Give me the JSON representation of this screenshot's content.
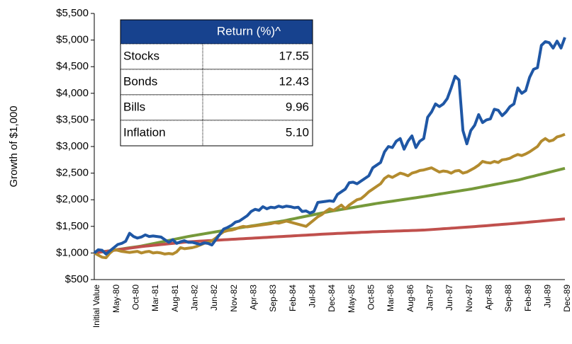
{
  "chart_data": {
    "type": "line",
    "y_label": "Growth of $1,000",
    "categories": [
      "Initial Value",
      null,
      null,
      null,
      null,
      "May-80",
      null,
      null,
      null,
      null,
      "Oct-80",
      null,
      null,
      null,
      null,
      "Mar-81",
      null,
      null,
      null,
      null,
      "Aug-81",
      null,
      null,
      null,
      null,
      "Jan-82",
      null,
      null,
      null,
      null,
      "Jun-82",
      null,
      null,
      null,
      null,
      "Nov-82",
      null,
      null,
      null,
      null,
      "Apr-83",
      null,
      null,
      null,
      null,
      "Sep-83",
      null,
      null,
      null,
      null,
      "Feb-84",
      null,
      null,
      null,
      null,
      "Jul-84",
      null,
      null,
      null,
      null,
      "Dec-84",
      null,
      null,
      null,
      null,
      "May-85",
      null,
      null,
      null,
      null,
      "Oct-85",
      null,
      null,
      null,
      null,
      "Mar-86",
      null,
      null,
      null,
      null,
      "Aug-86",
      null,
      null,
      null,
      null,
      "Jan-87",
      null,
      null,
      null,
      null,
      "Jun-87",
      null,
      null,
      null,
      null,
      "Nov-87",
      null,
      null,
      null,
      null,
      "Apr-88",
      null,
      null,
      null,
      null,
      "Sep-88",
      null,
      null,
      null,
      null,
      "Feb-89",
      null,
      null,
      null,
      null,
      "Jul-89",
      null,
      null,
      null,
      null,
      "Dec-89"
    ],
    "series": [
      {
        "name": "Stocks",
        "color": "#1f57a5",
        "values": [
          1000,
          1060,
          1050,
          980,
          1040,
          1100,
          1160,
          1180,
          1220,
          1370,
          1310,
          1280,
          1300,
          1340,
          1310,
          1320,
          1310,
          1300,
          1250,
          1200,
          1250,
          1180,
          1210,
          1230,
          1200,
          1200,
          1180,
          1160,
          1190,
          1180,
          1150,
          1250,
          1350,
          1450,
          1480,
          1520,
          1580,
          1600,
          1650,
          1700,
          1780,
          1820,
          1800,
          1870,
          1830,
          1860,
          1850,
          1880,
          1860,
          1880,
          1870,
          1850,
          1860,
          1780,
          1790,
          1750,
          1780,
          1950,
          1960,
          1970,
          1980,
          1970,
          2100,
          2150,
          2200,
          2320,
          2330,
          2300,
          2350,
          2400,
          2450,
          2600,
          2650,
          2700,
          2900,
          3000,
          2980,
          3100,
          3150,
          2950,
          3100,
          3200,
          2980,
          3100,
          3150,
          3550,
          3650,
          3800,
          3750,
          3800,
          3900,
          4100,
          4320,
          4250,
          3300,
          3050,
          3300,
          3400,
          3600,
          3450,
          3500,
          3520,
          3700,
          3680,
          3580,
          3650,
          3750,
          3800,
          4100,
          4000,
          4050,
          4300,
          4450,
          4480,
          4900,
          4970,
          4950,
          4850,
          4980,
          4850,
          5050
        ]
      },
      {
        "name": "Bonds",
        "color": "#b38b2e",
        "values": [
          1000,
          960,
          920,
          910,
          1000,
          1060,
          1050,
          1030,
          1020,
          1010,
          1020,
          1030,
          1000,
          1020,
          1030,
          1000,
          1010,
          1000,
          980,
          990,
          980,
          1020,
          1100,
          1080,
          1090,
          1100,
          1120,
          1150,
          1180,
          1200,
          1230,
          1280,
          1350,
          1400,
          1420,
          1430,
          1450,
          1480,
          1500,
          1490,
          1500,
          1510,
          1520,
          1530,
          1540,
          1550,
          1570,
          1560,
          1580,
          1600,
          1580,
          1560,
          1540,
          1520,
          1500,
          1560,
          1620,
          1680,
          1720,
          1780,
          1830,
          1800,
          1850,
          1900,
          1830,
          1900,
          1950,
          2000,
          2020,
          2080,
          2150,
          2200,
          2250,
          2300,
          2400,
          2450,
          2420,
          2460,
          2500,
          2480,
          2450,
          2500,
          2520,
          2550,
          2560,
          2580,
          2600,
          2560,
          2520,
          2540,
          2530,
          2500,
          2540,
          2550,
          2500,
          2520,
          2560,
          2600,
          2650,
          2720,
          2700,
          2690,
          2720,
          2700,
          2750,
          2760,
          2780,
          2820,
          2850,
          2830,
          2860,
          2900,
          2950,
          3000,
          3100,
          3150,
          3100,
          3120,
          3180,
          3200,
          3230
        ]
      },
      {
        "name": "Bills",
        "color": "#76993a",
        "values": [
          1000,
          1011,
          1022,
          1033,
          1043,
          1054,
          1065,
          1076,
          1087,
          1098,
          1108,
          1119,
          1130,
          1145,
          1160,
          1175,
          1190,
          1205,
          1220,
          1235,
          1250,
          1265,
          1280,
          1295,
          1310,
          1323,
          1335,
          1348,
          1360,
          1373,
          1385,
          1398,
          1410,
          1423,
          1435,
          1448,
          1460,
          1472,
          1483,
          1495,
          1507,
          1518,
          1530,
          1542,
          1553,
          1565,
          1577,
          1588,
          1600,
          1615,
          1630,
          1645,
          1660,
          1675,
          1690,
          1705,
          1720,
          1735,
          1750,
          1765,
          1780,
          1793,
          1805,
          1818,
          1830,
          1843,
          1855,
          1868,
          1880,
          1893,
          1905,
          1918,
          1930,
          1941,
          1952,
          1963,
          1973,
          1984,
          1995,
          2006,
          2017,
          2028,
          2038,
          2049,
          2060,
          2072,
          2083,
          2095,
          2107,
          2118,
          2130,
          2142,
          2153,
          2165,
          2177,
          2188,
          2200,
          2214,
          2228,
          2243,
          2257,
          2271,
          2285,
          2299,
          2313,
          2328,
          2342,
          2356,
          2370,
          2388,
          2407,
          2425,
          2443,
          2462,
          2480,
          2498,
          2517,
          2535,
          2553,
          2572,
          2590
        ]
      },
      {
        "name": "Inflation",
        "color": "#c0504d",
        "values": [
          1000,
          1010,
          1020,
          1030,
          1040,
          1050,
          1060,
          1070,
          1080,
          1090,
          1100,
          1110,
          1120,
          1128,
          1135,
          1143,
          1150,
          1158,
          1165,
          1173,
          1180,
          1188,
          1195,
          1203,
          1210,
          1214,
          1218,
          1223,
          1227,
          1231,
          1235,
          1239,
          1243,
          1248,
          1252,
          1256,
          1260,
          1264,
          1268,
          1273,
          1277,
          1281,
          1285,
          1289,
          1293,
          1298,
          1302,
          1306,
          1310,
          1314,
          1318,
          1323,
          1327,
          1331,
          1335,
          1339,
          1343,
          1348,
          1352,
          1356,
          1360,
          1363,
          1367,
          1370,
          1373,
          1377,
          1380,
          1383,
          1387,
          1390,
          1393,
          1397,
          1400,
          1403,
          1405,
          1408,
          1410,
          1413,
          1415,
          1418,
          1420,
          1423,
          1425,
          1428,
          1430,
          1435,
          1440,
          1445,
          1450,
          1455,
          1460,
          1465,
          1470,
          1475,
          1480,
          1485,
          1490,
          1496,
          1502,
          1508,
          1513,
          1519,
          1525,
          1531,
          1537,
          1543,
          1548,
          1554,
          1560,
          1567,
          1573,
          1580,
          1587,
          1593,
          1600,
          1607,
          1613,
          1620,
          1627,
          1633,
          1640
        ]
      }
    ],
    "ylim": [
      500,
      5500
    ],
    "yticks": [
      {
        "value": 500,
        "label": "$500"
      },
      {
        "value": 1000,
        "label": "$1,000"
      },
      {
        "value": 1500,
        "label": "$1,500"
      },
      {
        "value": 2000,
        "label": "$2,000"
      },
      {
        "value": 2500,
        "label": "$2,500"
      },
      {
        "value": 3000,
        "label": "$3,000"
      },
      {
        "value": 3500,
        "label": "$3,500"
      },
      {
        "value": 4000,
        "label": "$4,000"
      },
      {
        "value": 4500,
        "label": "$4,500"
      },
      {
        "value": 5000,
        "label": "$5,000"
      },
      {
        "value": 5500,
        "label": "$5,500"
      }
    ],
    "table": {
      "header": "Return (%)^",
      "rows": [
        [
          "Stocks",
          "17.55"
        ],
        [
          "Bonds",
          "12.43"
        ],
        [
          "Bills",
          "9.96"
        ],
        [
          "Inflation",
          "5.10"
        ]
      ]
    }
  }
}
